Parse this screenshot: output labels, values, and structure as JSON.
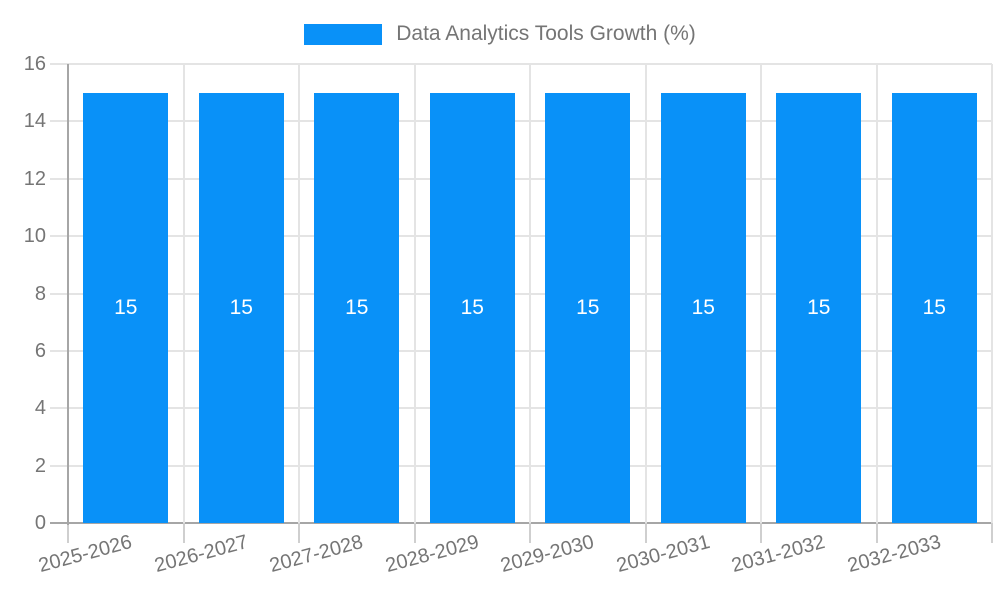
{
  "page": {
    "background": "#ffffff"
  },
  "legend": {
    "position": "top-center"
  },
  "colors": {
    "bar": "#0991f8",
    "text": "#757575",
    "axis": "#a6a6a6",
    "grid": "#e4e4e4",
    "tick": "#cfcfcf",
    "value_label": "#ffffff"
  },
  "chart_data": {
    "type": "bar",
    "title": "Data Analytics Tools Growth (%)",
    "categories": [
      "2025-2026",
      "2026-2027",
      "2027-2028",
      "2028-2029",
      "2029-2030",
      "2030-2031",
      "2031-2032",
      "2032-2033"
    ],
    "values": [
      15,
      15,
      15,
      15,
      15,
      15,
      15,
      15
    ],
    "value_labels": [
      "15",
      "15",
      "15",
      "15",
      "15",
      "15",
      "15",
      "15"
    ],
    "xlabel": "",
    "ylabel": "",
    "ylim": [
      0,
      16
    ],
    "y_ticks": [
      0,
      2,
      4,
      6,
      8,
      10,
      12,
      14,
      16
    ],
    "grid": true,
    "legend_position": "top",
    "x_label_rotation_deg": -15
  }
}
